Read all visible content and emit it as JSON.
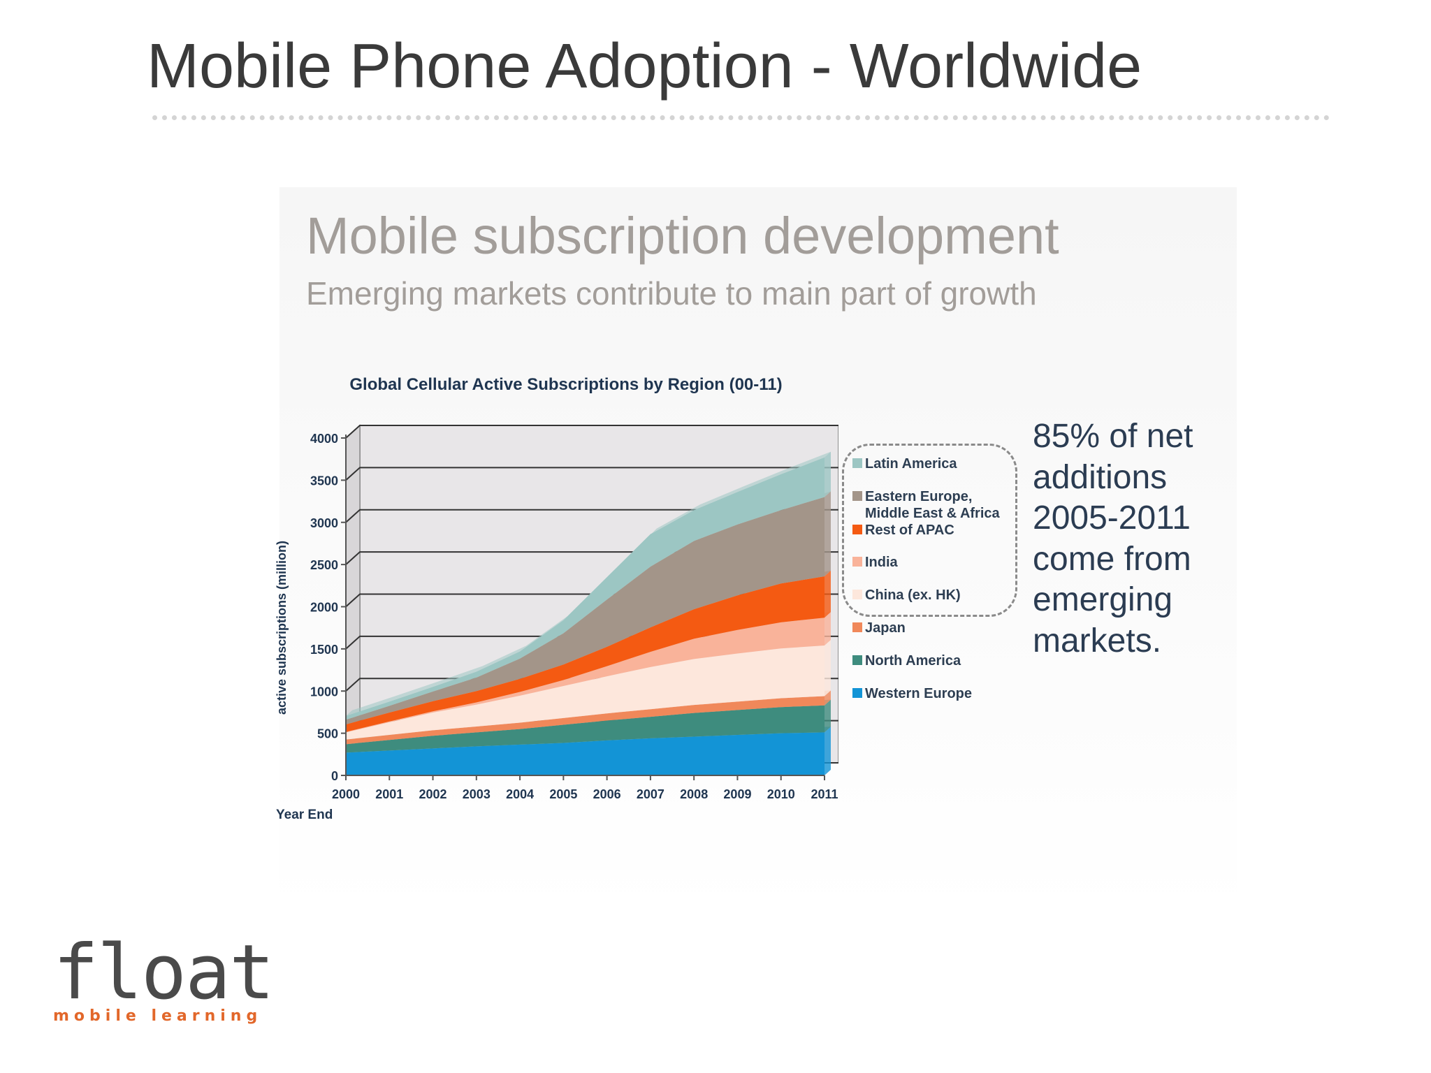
{
  "slide": {
    "title": "Mobile Phone Adoption - Worldwide"
  },
  "panel": {
    "heading": "Mobile subscription development",
    "subheading": "Emerging markets contribute to main part of growth"
  },
  "callout": "85% of net additions 2005-2011 come from emerging markets.",
  "logo": {
    "word": "float",
    "tagline": "mobile learning",
    "colors": {
      "word": "#4a4a4a",
      "tagline": "#e2672a"
    }
  },
  "chart_data": {
    "type": "area",
    "stacked": true,
    "title": "Global Cellular Active Subscriptions by Region (00-11)",
    "xlabel": "Year End",
    "ylabel": "active subscriptions (million)",
    "ylim": [
      0,
      4000
    ],
    "yticks": [
      0,
      500,
      1000,
      1500,
      2000,
      2500,
      3000,
      3500,
      4000
    ],
    "x": [
      "2000",
      "2001",
      "2002",
      "2003",
      "2004",
      "2005",
      "2006",
      "2007",
      "2008",
      "2009",
      "2010",
      "2011"
    ],
    "grid": true,
    "legend_position": "right",
    "series": [
      {
        "name": "Western Europe",
        "color": "#1394d6",
        "values": [
          270,
          295,
          320,
          345,
          365,
          385,
          415,
          440,
          460,
          480,
          500,
          510
        ]
      },
      {
        "name": "North America",
        "color": "#3e8c7e",
        "values": [
          100,
          125,
          150,
          165,
          185,
          215,
          235,
          255,
          280,
          295,
          310,
          320
        ]
      },
      {
        "name": "Japan",
        "color": "#f0885a",
        "values": [
          55,
          60,
          65,
          70,
          75,
          80,
          85,
          90,
          95,
          100,
          105,
          110
        ]
      },
      {
        "name": "China (ex. HK)",
        "color": "#fde7dc",
        "values": [
          85,
          150,
          210,
          260,
          320,
          380,
          440,
          500,
          545,
          570,
          590,
          600
        ]
      },
      {
        "name": "India",
        "color": "#f9b39a",
        "values": [
          5,
          10,
          15,
          25,
          45,
          70,
          120,
          180,
          240,
          280,
          310,
          330
        ]
      },
      {
        "name": "Rest of APAC",
        "color": "#f45a12",
        "values": [
          90,
          105,
          120,
          135,
          155,
          185,
          230,
          290,
          350,
          410,
          460,
          490
        ]
      },
      {
        "name": "Eastern Europe, Middle East & Africa",
        "color": "#a39589",
        "values": [
          55,
          80,
          115,
          160,
          240,
          370,
          560,
          720,
          810,
          840,
          870,
          940
        ]
      },
      {
        "name": "Latin America",
        "color": "#9cc6c3",
        "values": [
          45,
          50,
          55,
          70,
          85,
          155,
          265,
          385,
          365,
          385,
          425,
          470
        ]
      }
    ]
  }
}
